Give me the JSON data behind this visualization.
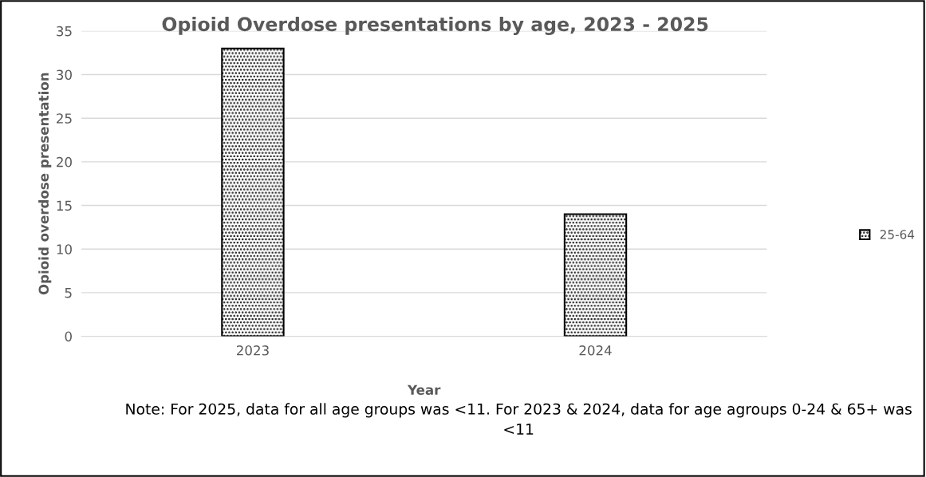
{
  "chart_data": {
    "type": "bar",
    "title": "Opioid Overdose presentations by age, 2023 - 2025",
    "xlabel": "Year",
    "ylabel": "Opioid overdose presentation",
    "categories": [
      "2023",
      "2024"
    ],
    "series": [
      {
        "name": "25-64",
        "color": "#000000",
        "values": [
          33,
          14
        ]
      }
    ],
    "ylim": [
      0,
      35
    ],
    "yticks": [
      0,
      5,
      10,
      15,
      20,
      25,
      30,
      35
    ],
    "grid": "y",
    "legend": "right",
    "annotations": [
      "Note: For 2025, data for all age groups was <11. For 2023 & 2024, data for age agroups 0-24 & 65+ was <11"
    ]
  }
}
